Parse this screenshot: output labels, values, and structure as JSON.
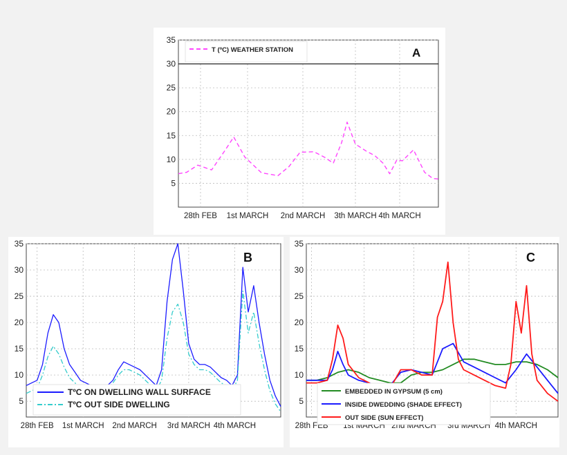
{
  "chart_data": [
    {
      "type": "line",
      "panel_label": "A",
      "x_ticks": [
        "28th FEB",
        "1st MARCH",
        "2nd MARCH",
        "3th MARCH",
        "4th MARCH"
      ],
      "y_ticks": [
        "5",
        "10",
        "15",
        "20",
        "25",
        "30",
        "35"
      ],
      "ylim": [
        0,
        35
      ],
      "grid": true,
      "legend_position": "top-left",
      "series": [
        {
          "name": "T (ºC) WEATHER STATION",
          "color": "#ff44ff",
          "style": "dashed",
          "x": [
            0,
            0.15,
            0.35,
            0.6,
            0.85,
            1.0,
            1.2,
            1.5,
            1.8,
            2.0,
            2.2,
            2.45,
            2.65,
            2.8,
            2.95,
            3.05,
            3.2,
            3.4,
            3.55,
            3.7,
            3.82,
            3.95,
            4.05,
            4.25,
            4.45,
            4.6,
            4.7
          ],
          "values": [
            7,
            7.3,
            8.8,
            7.8,
            12,
            14.7,
            10.5,
            7.2,
            6.6,
            8.5,
            11.5,
            11.6,
            10.4,
            9.2,
            13.5,
            17.8,
            13.2,
            11.7,
            10.8,
            9.2,
            7,
            9.9,
            9.7,
            12,
            7.3,
            6,
            5.9
          ]
        }
      ]
    },
    {
      "type": "line",
      "panel_label": "B",
      "x_ticks": [
        "28th FEB",
        "1st MARCH",
        "2nd MARCH",
        "3rd MARCH",
        "4th MARCH"
      ],
      "y_ticks": [
        "5",
        "10",
        "15",
        "20",
        "25",
        "30",
        "35"
      ],
      "ylim": [
        2,
        35
      ],
      "grid": true,
      "legend_position": "bottom-left",
      "series": [
        {
          "name": "TºC ON DWELLING WALL SURFACE",
          "color": "#1a1aff",
          "style": "solid",
          "x": [
            0,
            0.1,
            0.2,
            0.3,
            0.4,
            0.5,
            0.6,
            0.7,
            0.8,
            0.9,
            1.0,
            1.1,
            1.2,
            1.3,
            1.4,
            1.5,
            1.6,
            1.7,
            1.8,
            1.9,
            2.0,
            2.1,
            2.2,
            2.3,
            2.4,
            2.5,
            2.6,
            2.7,
            2.8,
            2.9,
            3.0,
            3.1,
            3.2,
            3.3,
            3.4,
            3.5,
            3.6,
            3.7,
            3.8,
            3.9,
            4.0,
            4.1,
            4.2,
            4.3,
            4.4,
            4.5,
            4.6,
            4.7
          ],
          "values": [
            8,
            8.5,
            9,
            12,
            18,
            21.5,
            20,
            15,
            12,
            10.5,
            9,
            8.5,
            8,
            7.5,
            7.5,
            8,
            9,
            11,
            12.5,
            12,
            11.5,
            11,
            10,
            9,
            8,
            11,
            24,
            32,
            35,
            26,
            16,
            13,
            12,
            12,
            11.5,
            10.5,
            9.5,
            9,
            8,
            10,
            30.5,
            22,
            27,
            20,
            14,
            9,
            6,
            4
          ]
        },
        {
          "name": "TºC OUT SIDE DWELLING",
          "color": "#33cccc",
          "style": "dashdot",
          "x": [
            0,
            0.1,
            0.2,
            0.3,
            0.4,
            0.5,
            0.6,
            0.7,
            0.8,
            0.9,
            1.0,
            1.1,
            1.2,
            1.3,
            1.4,
            1.5,
            1.6,
            1.7,
            1.8,
            1.9,
            2.0,
            2.1,
            2.2,
            2.3,
            2.4,
            2.5,
            2.6,
            2.7,
            2.8,
            2.9,
            3.0,
            3.1,
            3.2,
            3.3,
            3.4,
            3.5,
            3.6,
            3.7,
            3.8,
            3.9,
            4.0,
            4.1,
            4.2,
            4.3,
            4.4,
            4.5,
            4.6,
            4.7
          ],
          "values": [
            6.5,
            7,
            7.5,
            10,
            13.5,
            15.5,
            14,
            11.5,
            9.5,
            8.5,
            7.5,
            7,
            6.5,
            6.5,
            7,
            7.5,
            8.5,
            10,
            11,
            11,
            10.5,
            10,
            9,
            8,
            7,
            9,
            17,
            22,
            23.5,
            20,
            14,
            12,
            11,
            11,
            10.5,
            9.5,
            8.5,
            8,
            7,
            9,
            26,
            18,
            22,
            16,
            11,
            7,
            4.5,
            3
          ]
        }
      ]
    },
    {
      "type": "line",
      "panel_label": "C",
      "x_ticks": [
        "28th FEB",
        "1st MARCH",
        "2nd MARCH",
        "3rd MARCH",
        "4th MARCH"
      ],
      "y_ticks": [
        "5",
        "10",
        "15",
        "20",
        "25",
        "30",
        "35"
      ],
      "ylim": [
        2,
        35
      ],
      "grid": true,
      "legend_position": "bottom-left",
      "series": [
        {
          "name": "EMBEDDED IN GYPSUM (5 cm)",
          "color": "#228b22",
          "style": "solid",
          "x": [
            0,
            0.2,
            0.4,
            0.6,
            0.8,
            1.0,
            1.2,
            1.4,
            1.6,
            1.8,
            2.0,
            2.2,
            2.4,
            2.6,
            2.8,
            3.0,
            3.2,
            3.4,
            3.6,
            3.8,
            4.0,
            4.2,
            4.4,
            4.6,
            4.8
          ],
          "values": [
            9,
            9,
            9.5,
            10.5,
            11,
            10.5,
            9.5,
            9,
            8.5,
            8.5,
            10,
            10.5,
            10.5,
            11,
            12,
            13,
            13,
            12.5,
            12,
            12,
            12.5,
            12.5,
            12,
            11,
            9.5
          ]
        },
        {
          "name": "INSIDE DWEDDING (SHADE EFFECT)",
          "color": "#1a1aff",
          "style": "solid",
          "x": [
            0,
            0.2,
            0.4,
            0.5,
            0.6,
            0.7,
            0.8,
            1.0,
            1.2,
            1.4,
            1.6,
            1.8,
            2.0,
            2.2,
            2.4,
            2.6,
            2.8,
            3.0,
            3.2,
            3.4,
            3.6,
            3.8,
            4.0,
            4.2,
            4.4,
            4.6,
            4.8
          ],
          "values": [
            9,
            9,
            9,
            11,
            14.5,
            12,
            10,
            9,
            8.5,
            7.5,
            8,
            10.5,
            11,
            10.5,
            10,
            15,
            16,
            12.5,
            11.5,
            10.5,
            9.5,
            8.5,
            11,
            14,
            11.5,
            9,
            6.5
          ]
        },
        {
          "name": "OUT SIDE (SUN EFFECT)",
          "color": "#ff1a1a",
          "style": "solid",
          "x": [
            0,
            0.2,
            0.4,
            0.5,
            0.6,
            0.7,
            0.8,
            1.0,
            1.2,
            1.4,
            1.6,
            1.8,
            2.0,
            2.2,
            2.4,
            2.5,
            2.6,
            2.7,
            2.8,
            2.9,
            3.0,
            3.2,
            3.4,
            3.6,
            3.8,
            3.9,
            4.0,
            4.1,
            4.2,
            4.3,
            4.4,
            4.6,
            4.8
          ],
          "values": [
            8.5,
            8.5,
            9,
            13,
            19.5,
            17,
            12,
            9.5,
            8.5,
            7,
            7.5,
            11,
            11,
            10,
            10,
            21,
            24,
            31.5,
            20,
            13,
            11,
            10,
            9,
            8,
            7.5,
            12,
            24,
            18,
            27,
            14,
            9,
            6.5,
            5
          ]
        }
      ]
    }
  ]
}
